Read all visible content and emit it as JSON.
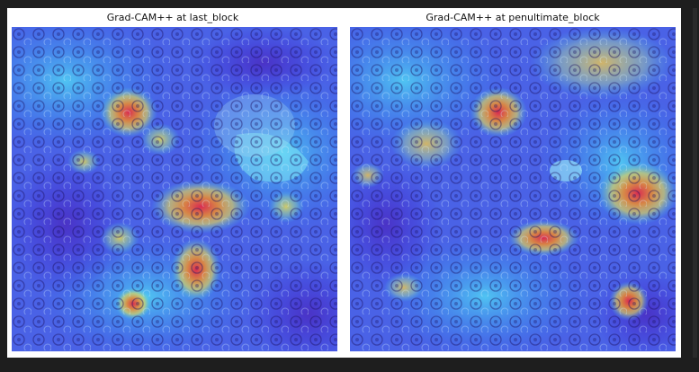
{
  "figure": {
    "panels": [
      {
        "title": "Grad-CAM++ at last_block",
        "image": "histology-heatmap-overlay"
      },
      {
        "title": "Grad-CAM++ at penultimate_block",
        "image": "histology-heatmap-overlay"
      }
    ],
    "colormap": [
      "#3a1fd8",
      "#2f7df0",
      "#40d8f0",
      "#f2e04a",
      "#f08a2a",
      "#e0284a"
    ]
  }
}
